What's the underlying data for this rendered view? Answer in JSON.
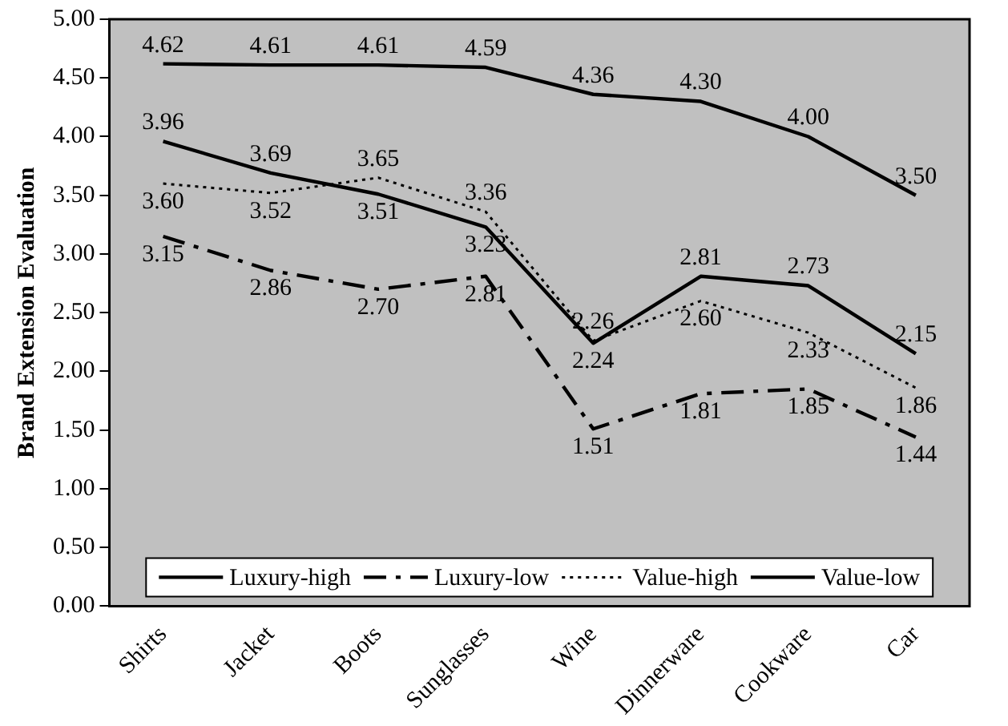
{
  "chart_data": {
    "type": "line",
    "ylabel": "Brand Extension Evaluation",
    "categories": [
      "Shirts",
      "Jacket",
      "Boots",
      "Sunglasses",
      "Wine",
      "Dinnerware",
      "Cookware",
      "Car"
    ],
    "series": [
      {
        "name": "Luxury-high",
        "color": "#000000",
        "line_style": "solid",
        "values": [
          4.62,
          4.61,
          4.61,
          4.59,
          4.36,
          4.3,
          4.0,
          3.5
        ],
        "value_labels": [
          "4.62",
          "4.61",
          "4.61",
          "4.59",
          "4.36",
          "4.30",
          "4.00",
          "3.50"
        ]
      },
      {
        "name": "Luxury-low",
        "color": "#000000",
        "line_style": "dashed",
        "values": [
          3.15,
          2.86,
          2.7,
          2.81,
          1.51,
          1.81,
          1.85,
          1.44
        ],
        "value_labels": [
          "3.15",
          "2.86",
          "2.70",
          "2.81",
          "1.51",
          "1.81",
          "1.85",
          "1.44"
        ]
      },
      {
        "name": "Value-high",
        "color": "#000000",
        "line_style": "dotted",
        "values": [
          3.6,
          3.52,
          3.65,
          3.36,
          2.26,
          2.6,
          2.33,
          1.86
        ],
        "value_labels": [
          "3.60",
          "3.52",
          "3.65",
          "3.36",
          "2.26",
          "2.60",
          "2.33",
          "1.86"
        ]
      },
      {
        "name": "Value-low",
        "color": "#000000",
        "line_style": "solid",
        "values": [
          3.96,
          3.69,
          3.51,
          3.23,
          2.24,
          2.81,
          2.73,
          2.15
        ],
        "value_labels": [
          "3.96",
          "3.69",
          "3.51",
          "3.23",
          "2.24",
          "2.81",
          "2.73",
          "2.15"
        ]
      }
    ],
    "ylim": [
      0,
      5
    ],
    "yticks": [
      {
        "value": 0,
        "label": "0.00"
      },
      {
        "value": 0.5,
        "label": "0.50"
      },
      {
        "value": 1,
        "label": "1.00"
      },
      {
        "value": 1.5,
        "label": "1.50"
      },
      {
        "value": 2,
        "label": "2.00"
      },
      {
        "value": 2.5,
        "label": "2.50"
      },
      {
        "value": 3,
        "label": "3.00"
      },
      {
        "value": 3.5,
        "label": "3.50"
      },
      {
        "value": 4,
        "label": "4.00"
      },
      {
        "value": 4.5,
        "label": "4.50"
      },
      {
        "value": 5,
        "label": "5.00"
      }
    ],
    "grid": false,
    "legend": "bottom",
    "marker": "none"
  }
}
